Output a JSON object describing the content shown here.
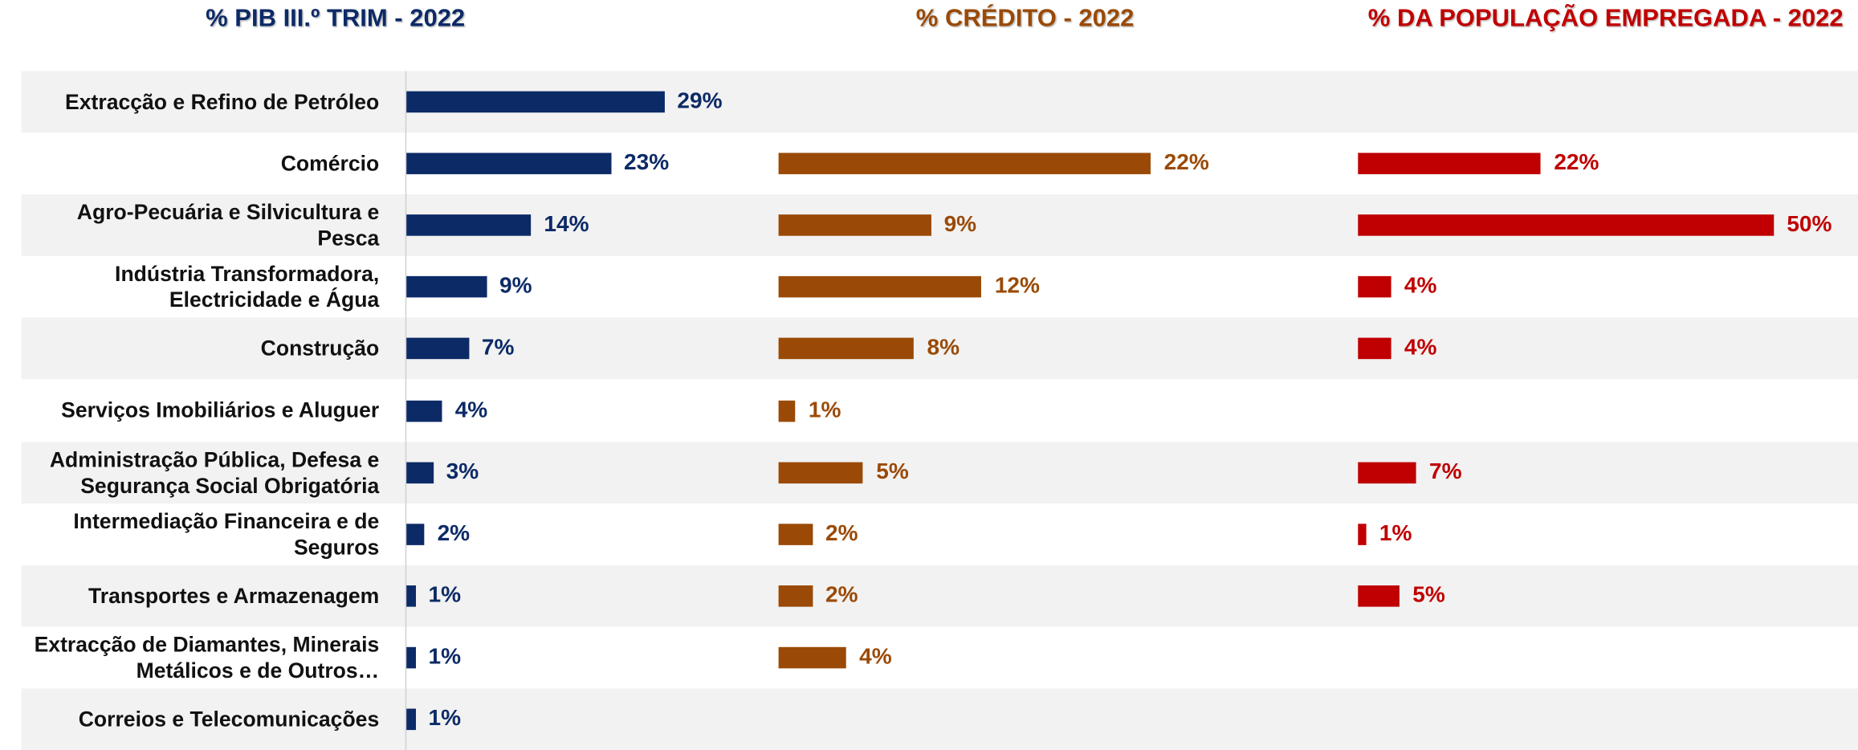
{
  "chart_data": {
    "type": "bar",
    "categories": [
      "Extracção e Refino de Petróleo",
      "Comércio",
      "Agro-Pecuária e Silvicultura  e Pesca",
      "Indústria Transformadora, Electricidade e Água",
      "Construção",
      "Serviços Imobiliários e Aluguer",
      "Administração Pública, Defesa e Segurança Social Obrigatória",
      "Intermediação Financeira e de Seguros",
      "Transportes e Armazenagem",
      "Extracção de Diamantes, Minerais Metálicos e de Outros…",
      "Correios e Telecomunicações"
    ],
    "series": [
      {
        "name": "% PIB III.º TRIM - 2022",
        "color": "#0c2a66",
        "xlim": [
          0,
          40
        ],
        "values": [
          29,
          23,
          14,
          9,
          7,
          4,
          3,
          2,
          1,
          1,
          1
        ],
        "value_labels": [
          "29%",
          "23%",
          "14%",
          "9%",
          "7%",
          "4%",
          "3%",
          "2%",
          "1%",
          "1%",
          "1%"
        ]
      },
      {
        "name": "% CRÉDITO - 2022",
        "color": "#9a4a06",
        "xlim": [
          0,
          28
        ],
        "values": [
          null,
          22,
          9,
          12,
          8,
          1,
          5,
          2,
          2,
          4,
          null
        ],
        "value_labels": [
          null,
          "22%",
          "9%",
          "12%",
          "8%",
          "1%",
          "5%",
          "2%",
          "2%",
          "4%",
          null
        ]
      },
      {
        "name": "% DA POPULAÇÃO EMPREGADA - 2022",
        "color": "#c00000",
        "xlim": [
          0,
          57
        ],
        "values": [
          null,
          22,
          50,
          4,
          4,
          null,
          7,
          1,
          5,
          null,
          null
        ],
        "value_labels": [
          null,
          "22%",
          "50%",
          "4%",
          "4%",
          null,
          "7%",
          "1%",
          "5%",
          null,
          null
        ]
      }
    ]
  }
}
